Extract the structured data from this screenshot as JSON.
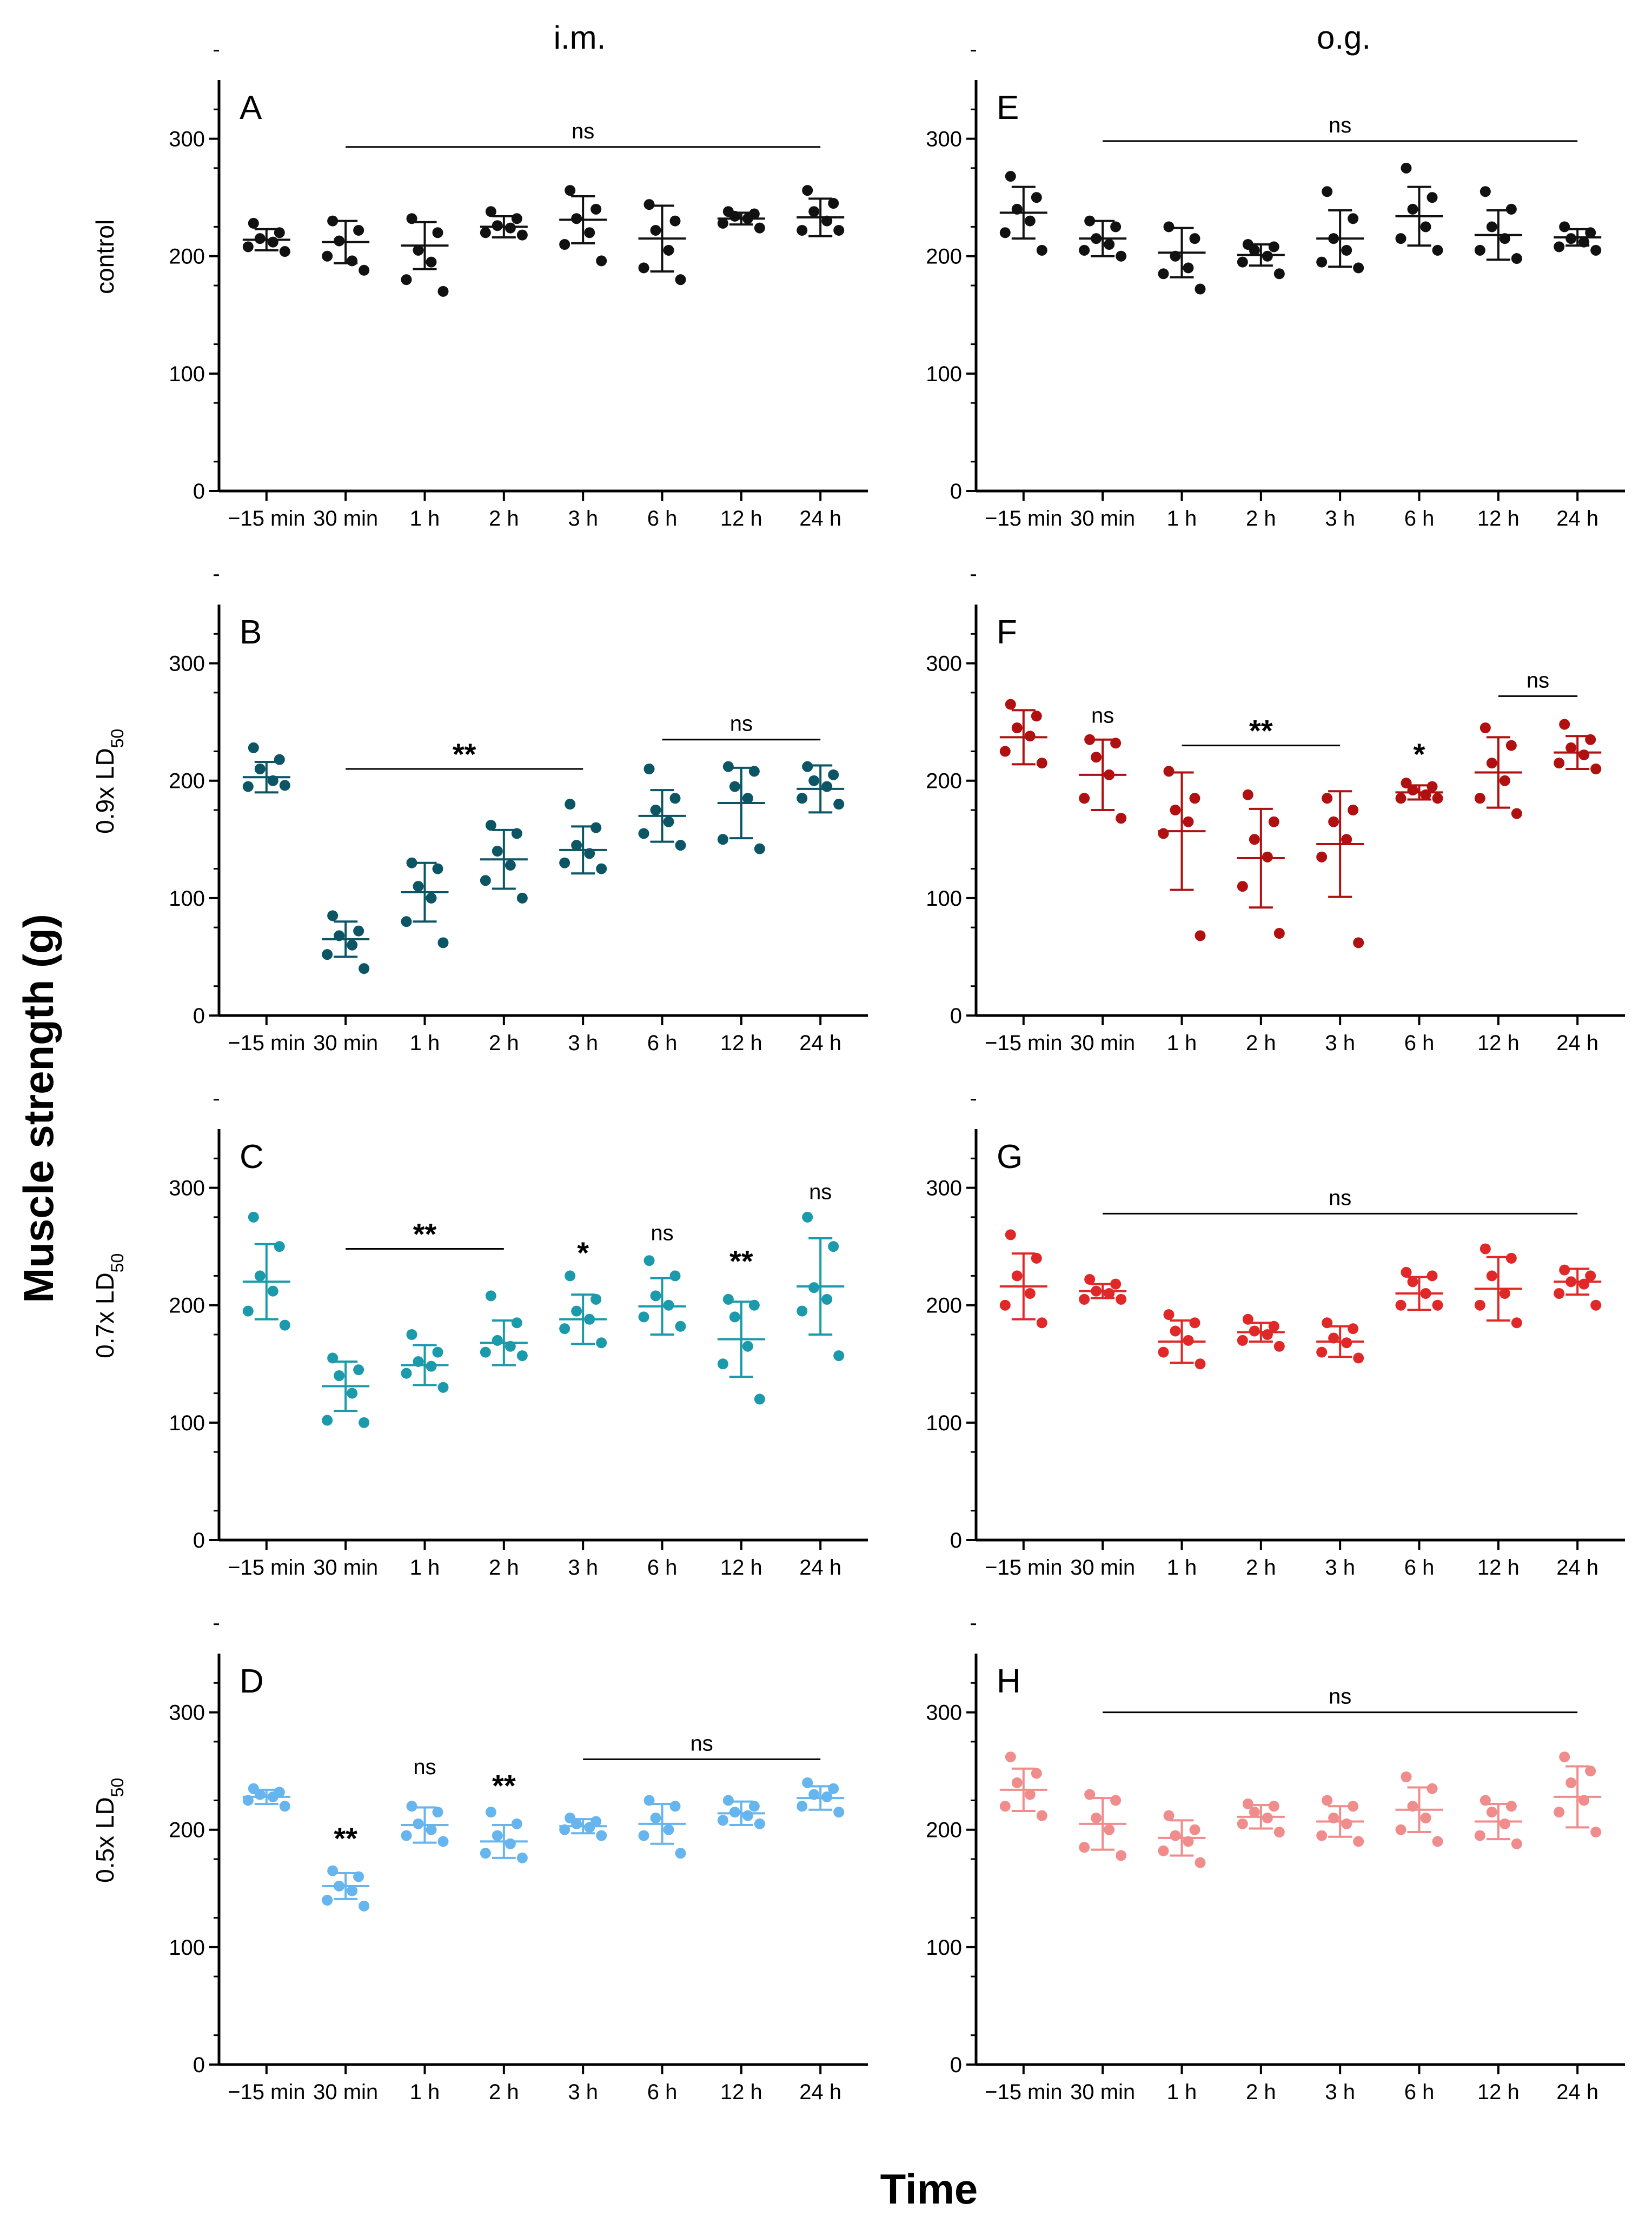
{
  "column_titles": [
    "i.m.",
    "o.g."
  ],
  "ylabel": "Muscle strength (g)",
  "xlabel": "Time",
  "rows": [
    {
      "label": "control",
      "sub": ""
    },
    {
      "label": "0.9x LD",
      "sub": "50"
    },
    {
      "label": "0.7x LD",
      "sub": "50"
    },
    {
      "label": "0.5x LD",
      "sub": "50"
    }
  ],
  "chart_data": [
    {
      "panel": "A",
      "type": "scatter",
      "route": "i.m.",
      "group": "control",
      "color": "#111111",
      "categories": [
        "−15 min",
        "30 min",
        "1 h",
        "2 h",
        "3 h",
        "6 h",
        "12 h",
        "24 h"
      ],
      "yticks": [
        0,
        100,
        200,
        300
      ],
      "ylim": [
        0,
        350
      ],
      "ylabel": "Muscle strength (g)",
      "xlabel": "Time",
      "points": [
        [
          228,
          220,
          215,
          212,
          208,
          204
        ],
        [
          230,
          222,
          213,
          196,
          200,
          188
        ],
        [
          232,
          220,
          205,
          195,
          180,
          170
        ],
        [
          238,
          232,
          226,
          224,
          220,
          218
        ],
        [
          256,
          240,
          232,
          220,
          210,
          196
        ],
        [
          244,
          230,
          222,
          205,
          190,
          180
        ],
        [
          238,
          236,
          234,
          232,
          228,
          224
        ],
        [
          256,
          245,
          238,
          230,
          222,
          222
        ]
      ],
      "mean": [
        214,
        212,
        209,
        225,
        231,
        215,
        232,
        233
      ],
      "sd": [
        9,
        18,
        20,
        9,
        20,
        28,
        5,
        16
      ],
      "annotations": [
        {
          "from": 1,
          "to": 7,
          "text": "ns",
          "bold": false,
          "y": 293
        }
      ]
    },
    {
      "panel": "B",
      "type": "scatter",
      "route": "i.m.",
      "group": "0.9x LD50",
      "color": "#0b5565",
      "categories": [
        "−15 min",
        "30 min",
        "1 h",
        "2 h",
        "3 h",
        "6 h",
        "12 h",
        "24 h"
      ],
      "yticks": [
        0,
        100,
        200,
        300
      ],
      "ylim": [
        0,
        350
      ],
      "ylabel": "Muscle strength (g)",
      "xlabel": "Time",
      "points": [
        [
          228,
          218,
          210,
          200,
          195,
          196
        ],
        [
          85,
          72,
          68,
          60,
          52,
          40
        ],
        [
          130,
          125,
          110,
          100,
          80,
          62
        ],
        [
          162,
          155,
          140,
          128,
          115,
          100
        ],
        [
          180,
          160,
          145,
          138,
          130,
          125
        ],
        [
          210,
          185,
          175,
          165,
          155,
          145
        ],
        [
          212,
          208,
          195,
          185,
          150,
          142
        ],
        [
          212,
          205,
          200,
          195,
          185,
          180
        ]
      ],
      "mean": [
        203,
        65,
        105,
        133,
        141,
        170,
        181,
        193
      ],
      "sd": [
        13,
        15,
        25,
        25,
        20,
        22,
        30,
        20
      ],
      "annotations": [
        {
          "from": 1,
          "to": 4,
          "text": "**",
          "bold": true,
          "y": 210
        },
        {
          "from": 5,
          "to": 7,
          "text": "ns",
          "bold": false,
          "y": 235
        }
      ]
    },
    {
      "panel": "C",
      "type": "scatter",
      "route": "i.m.",
      "group": "0.7x LD50",
      "color": "#1a9aaa",
      "categories": [
        "−15 min",
        "30 min",
        "1 h",
        "2 h",
        "3 h",
        "6 h",
        "12 h",
        "24 h"
      ],
      "yticks": [
        0,
        100,
        200,
        300
      ],
      "ylim": [
        0,
        350
      ],
      "ylabel": "Muscle strength (g)",
      "xlabel": "Time",
      "points": [
        [
          275,
          250,
          225,
          212,
          195,
          183
        ],
        [
          155,
          145,
          140,
          125,
          102,
          100
        ],
        [
          175,
          160,
          152,
          148,
          142,
          130
        ],
        [
          208,
          185,
          170,
          165,
          160,
          157
        ],
        [
          225,
          205,
          195,
          188,
          180,
          168
        ],
        [
          238,
          225,
          208,
          200,
          190,
          182
        ],
        [
          205,
          200,
          190,
          165,
          150,
          120
        ],
        [
          275,
          250,
          215,
          205,
          195,
          157
        ]
      ],
      "mean": [
        220,
        131,
        149,
        168,
        188,
        199,
        171,
        216
      ],
      "sd": [
        32,
        21,
        17,
        19,
        21,
        24,
        32,
        41
      ],
      "annotations": [
        {
          "from": 1,
          "to": 3,
          "text": "**",
          "bold": true,
          "y": 248
        },
        {
          "at": 4,
          "text": "*",
          "bold": true,
          "y": 232
        },
        {
          "at": 5,
          "text": "ns",
          "bold": false,
          "y": 248
        },
        {
          "at": 6,
          "text": "**",
          "bold": true,
          "y": 225
        },
        {
          "at": 7,
          "text": "ns",
          "bold": false,
          "y": 283
        }
      ]
    },
    {
      "panel": "D",
      "type": "scatter",
      "route": "i.m.",
      "group": "0.5x LD50",
      "color": "#66b5ee",
      "categories": [
        "−15 min",
        "30 min",
        "1 h",
        "2 h",
        "3 h",
        "6 h",
        "12 h",
        "24 h"
      ],
      "yticks": [
        0,
        100,
        200,
        300
      ],
      "ylim": [
        0,
        350
      ],
      "ylabel": "Muscle strength (g)",
      "xlabel": "Time",
      "points": [
        [
          235,
          232,
          230,
          228,
          225,
          220
        ],
        [
          165,
          160,
          152,
          148,
          140,
          135
        ],
        [
          220,
          215,
          205,
          200,
          195,
          190
        ],
        [
          215,
          205,
          195,
          188,
          180,
          176
        ],
        [
          210,
          207,
          205,
          202,
          200,
          195
        ],
        [
          225,
          220,
          210,
          200,
          195,
          180
        ],
        [
          225,
          220,
          215,
          212,
          208,
          205
        ],
        [
          240,
          235,
          230,
          228,
          220,
          215
        ]
      ],
      "mean": [
        228,
        152,
        204,
        190,
        203,
        205,
        214,
        227
      ],
      "sd": [
        6,
        11,
        15,
        14,
        6,
        17,
        10,
        10
      ],
      "annotations": [
        {
          "at": 1,
          "text": "**",
          "bold": true,
          "y": 180
        },
        {
          "at": 2,
          "text": "ns",
          "bold": false,
          "y": 240
        },
        {
          "at": 3,
          "text": "**",
          "bold": true,
          "y": 225
        },
        {
          "from": 4,
          "to": 7,
          "text": "ns",
          "bold": false,
          "y": 260
        }
      ]
    },
    {
      "panel": "E",
      "type": "scatter",
      "route": "o.g.",
      "group": "control",
      "color": "#111111",
      "categories": [
        "−15 min",
        "30 min",
        "1 h",
        "2 h",
        "3 h",
        "6 h",
        "12 h",
        "24 h"
      ],
      "yticks": [
        0,
        100,
        200,
        300
      ],
      "ylim": [
        0,
        350
      ],
      "ylabel": "Muscle strength (g)",
      "xlabel": "Time",
      "points": [
        [
          268,
          250,
          240,
          230,
          220,
          205
        ],
        [
          230,
          225,
          215,
          210,
          205,
          200
        ],
        [
          225,
          215,
          200,
          190,
          185,
          172
        ],
        [
          210,
          208,
          205,
          200,
          195,
          185
        ],
        [
          255,
          232,
          215,
          205,
          195,
          190
        ],
        [
          275,
          250,
          240,
          225,
          215,
          205
        ],
        [
          255,
          240,
          225,
          215,
          205,
          198
        ],
        [
          225,
          220,
          215,
          212,
          208,
          205
        ]
      ],
      "mean": [
        237,
        215,
        203,
        201,
        215,
        234,
        218,
        216
      ],
      "sd": [
        22,
        15,
        21,
        9,
        24,
        25,
        21,
        7
      ],
      "annotations": [
        {
          "from": 1,
          "to": 7,
          "text": "ns",
          "bold": false,
          "y": 298
        }
      ]
    },
    {
      "panel": "F",
      "type": "scatter",
      "route": "o.g.",
      "group": "0.9x LD50",
      "color": "#b01010",
      "categories": [
        "−15 min",
        "30 min",
        "1 h",
        "2 h",
        "3 h",
        "6 h",
        "12 h",
        "24 h"
      ],
      "yticks": [
        0,
        100,
        200,
        300
      ],
      "ylim": [
        0,
        350
      ],
      "ylabel": "Muscle strength (g)",
      "xlabel": "Time",
      "points": [
        [
          265,
          255,
          245,
          238,
          225,
          215
        ],
        [
          235,
          232,
          220,
          205,
          185,
          168
        ],
        [
          208,
          185,
          175,
          165,
          155,
          68
        ],
        [
          188,
          165,
          150,
          135,
          110,
          70
        ],
        [
          185,
          175,
          165,
          150,
          135,
          62
        ],
        [
          198,
          195,
          192,
          188,
          185,
          185
        ],
        [
          245,
          230,
          215,
          200,
          185,
          172
        ],
        [
          248,
          235,
          228,
          222,
          215,
          210
        ]
      ],
      "mean": [
        237,
        205,
        157,
        134,
        146,
        190,
        207,
        224
      ],
      "sd": [
        23,
        30,
        50,
        42,
        45,
        6,
        30,
        14
      ],
      "annotations": [
        {
          "at": 1,
          "text": "ns",
          "bold": false,
          "y": 242
        },
        {
          "from": 2,
          "to": 4,
          "text": "**",
          "bold": true,
          "y": 230
        },
        {
          "at": 5,
          "text": "*",
          "bold": true,
          "y": 210
        },
        {
          "from": 6,
          "to": 7,
          "text": "ns",
          "bold": false,
          "y": 272
        }
      ]
    },
    {
      "panel": "G",
      "type": "scatter",
      "route": "o.g.",
      "group": "0.7x LD50",
      "color": "#e02828",
      "categories": [
        "−15 min",
        "30 min",
        "1 h",
        "2 h",
        "3 h",
        "6 h",
        "12 h",
        "24 h"
      ],
      "yticks": [
        0,
        100,
        200,
        300
      ],
      "ylim": [
        0,
        350
      ],
      "ylabel": "Muscle strength (g)",
      "xlabel": "Time",
      "points": [
        [
          260,
          240,
          225,
          210,
          200,
          185
        ],
        [
          222,
          218,
          212,
          210,
          205,
          205
        ],
        [
          192,
          185,
          178,
          170,
          160,
          150
        ],
        [
          188,
          182,
          178,
          175,
          170,
          165
        ],
        [
          185,
          180,
          172,
          168,
          160,
          155
        ],
        [
          228,
          225,
          220,
          210,
          200,
          200
        ],
        [
          248,
          240,
          225,
          210,
          200,
          185
        ],
        [
          230,
          225,
          220,
          218,
          210,
          200
        ]
      ],
      "mean": [
        216,
        212,
        169,
        177,
        169,
        210,
        214,
        220
      ],
      "sd": [
        28,
        6,
        18,
        8,
        13,
        14,
        27,
        11
      ],
      "annotations": [
        {
          "from": 1,
          "to": 7,
          "text": "ns",
          "bold": false,
          "y": 278
        }
      ]
    },
    {
      "panel": "H",
      "type": "scatter",
      "route": "o.g.",
      "group": "0.5x LD50",
      "color": "#f08c8c",
      "categories": [
        "−15 min",
        "30 min",
        "1 h",
        "2 h",
        "3 h",
        "6 h",
        "12 h",
        "24 h"
      ],
      "yticks": [
        0,
        100,
        200,
        300
      ],
      "ylim": [
        0,
        350
      ],
      "ylabel": "Muscle strength (g)",
      "xlabel": "Time",
      "points": [
        [
          262,
          248,
          240,
          230,
          220,
          212
        ],
        [
          230,
          225,
          210,
          200,
          185,
          178
        ],
        [
          212,
          200,
          195,
          190,
          182,
          172
        ],
        [
          222,
          220,
          215,
          210,
          205,
          198
        ],
        [
          225,
          220,
          210,
          205,
          195,
          190
        ],
        [
          245,
          235,
          220,
          210,
          200,
          190
        ],
        [
          225,
          220,
          215,
          205,
          195,
          188
        ],
        [
          262,
          250,
          240,
          225,
          215,
          198
        ]
      ],
      "mean": [
        234,
        205,
        193,
        211,
        207,
        217,
        207,
        228
      ],
      "sd": [
        18,
        22,
        15,
        10,
        13,
        19,
        15,
        26
      ],
      "annotations": [
        {
          "from": 1,
          "to": 7,
          "text": "ns",
          "bold": false,
          "y": 300
        }
      ]
    }
  ]
}
